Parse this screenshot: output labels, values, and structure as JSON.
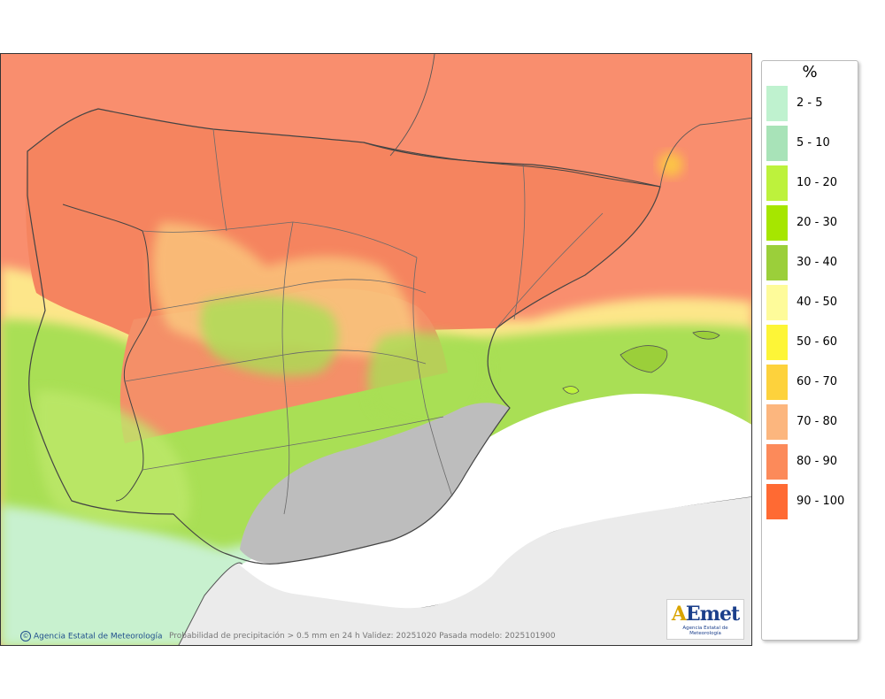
{
  "map": {
    "caption": "Probabilidad de precipitación > 0.5 mm en 24 h Validez: 20251020 Pasada modelo: 2025101900",
    "credit": "Agencia Estatal de Meteorología",
    "credit_symbol": "©",
    "logo": {
      "text_a": "A",
      "text_rest": "Emet",
      "subtitle": "Agencia Estatal de Meteorología"
    }
  },
  "legend": {
    "unit": "%",
    "classes": [
      {
        "label": "2 - 5",
        "color": "#bff2cf"
      },
      {
        "label": "5 - 10",
        "color": "#a8e3b8"
      },
      {
        "label": "10 - 20",
        "color": "#bdf23c"
      },
      {
        "label": "20 - 30",
        "color": "#a6e600"
      },
      {
        "label": "30 - 40",
        "color": "#9bcf3a"
      },
      {
        "label": "40 - 50",
        "color": "#fefb9a"
      },
      {
        "label": "50 - 60",
        "color": "#fdf537"
      },
      {
        "label": "60 - 70",
        "color": "#fdd23c"
      },
      {
        "label": "70 - 80",
        "color": "#fcb67e"
      },
      {
        "label": "80 - 90",
        "color": "#fc8a5a"
      },
      {
        "label": "90 - 100",
        "color": "#ff6a33"
      }
    ]
  },
  "colors": {
    "sea_high": "#f98e6e",
    "land_high": "#f5845f",
    "foreign_land": "#ebebeb",
    "terrain": "#bdbdbd",
    "border": "#4a4a4a"
  }
}
